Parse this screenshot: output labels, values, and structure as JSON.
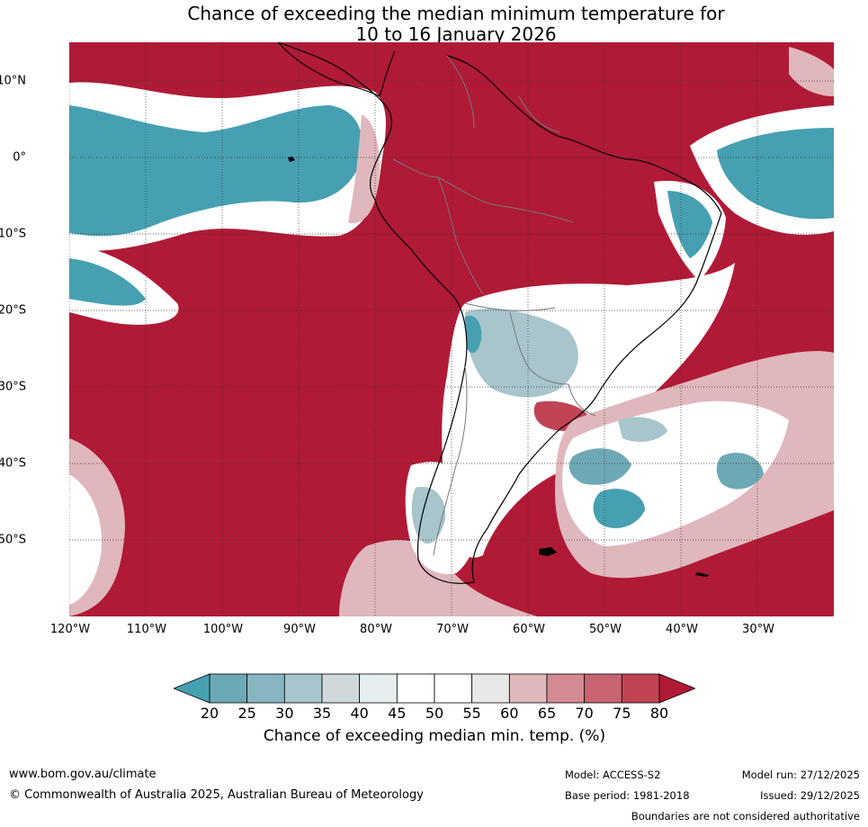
{
  "title": {
    "line1": "Chance of exceeding the median minimum temperature for",
    "line2": "10 to 16 January 2026"
  },
  "map": {
    "latitude_labels": [
      "10°N",
      "0°",
      "10°S",
      "20°S",
      "30°S",
      "40°S",
      "50°S"
    ],
    "longitude_labels": [
      "120°W",
      "110°W",
      "100°W",
      "90°W",
      "80°W",
      "70°W",
      "60°W",
      "50°W",
      "40°W",
      "30°W"
    ],
    "colors": {
      "c80": "#b01a37",
      "c75": "#c04456",
      "c70": "#c96572",
      "c65": "#d48a93",
      "c60": "#e0b7bc",
      "c55": "#e9e8e9",
      "c50": "#ffffff",
      "c45": "#ffffff",
      "c40": "#e6eef0",
      "c35": "#cfd9db",
      "c30": "#a8c5cc",
      "c25": "#87b6c2",
      "c20": "#6da9b5",
      "c_low": "#46a0b1"
    }
  },
  "colorbar": {
    "ticks": [
      "20",
      "25",
      "30",
      "35",
      "40",
      "45",
      "50",
      "55",
      "60",
      "65",
      "70",
      "75",
      "80"
    ],
    "label": "Chance of exceeding median min. temp. (%)",
    "colors": [
      "#46a0b1",
      "#6da9b5",
      "#87b6c2",
      "#a8c5cc",
      "#cfd9db",
      "#e6eef0",
      "#ffffff",
      "#ffffff",
      "#e9e8e9",
      "#e0b7bc",
      "#d48a93",
      "#c96572",
      "#c04456",
      "#b01a37"
    ]
  },
  "footer": {
    "website": "www.bom.gov.au/climate",
    "copyright": "© Commonwealth of Australia 2025, Australian Bureau of Meteorology",
    "model": "Model: ACCESS-S2",
    "base_period": "Base period: 1981-2018",
    "model_run": "Model run: 27/12/2025",
    "issued": "Issued: 29/12/2025",
    "disclaimer": "Boundaries are not considered authoritative"
  }
}
